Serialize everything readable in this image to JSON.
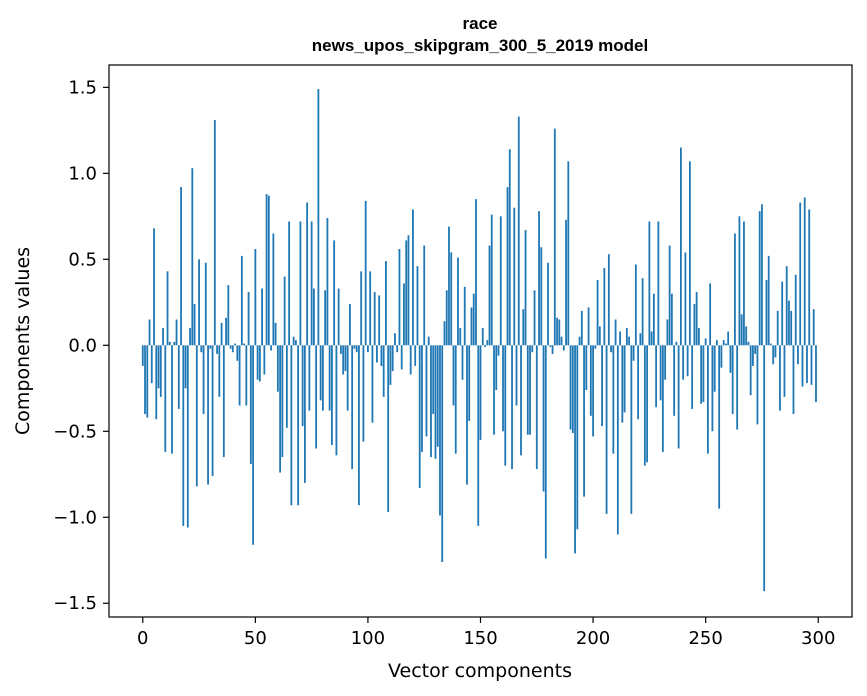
{
  "chart_data": {
    "type": "bar",
    "title": "race",
    "subtitle": "news_upos_skipgram_300_5_2019 model",
    "xlabel": "Vector components",
    "ylabel": "Components values",
    "xlim": [
      -15,
      315
    ],
    "ylim": [
      -1.58,
      1.63
    ],
    "xticks": [
      0,
      50,
      100,
      150,
      200,
      250,
      300
    ],
    "yticks": [
      -1.5,
      -1.0,
      -0.5,
      0.0,
      0.5,
      1.0,
      1.5
    ],
    "ytick_labels": [
      "−1.5",
      "−1.0",
      "−0.5",
      "0.0",
      "0.5",
      "1.0",
      "1.5"
    ],
    "grid": false,
    "bar_color": "#1f77b4",
    "values": [
      -0.12,
      -0.4,
      -0.42,
      0.15,
      -0.22,
      0.68,
      -0.43,
      -0.25,
      -0.3,
      0.1,
      -0.62,
      0.43,
      0.02,
      -0.63,
      0.02,
      0.15,
      -0.37,
      0.92,
      -1.05,
      -0.25,
      -1.06,
      0.1,
      1.03,
      0.24,
      -0.82,
      0.5,
      -0.04,
      -0.4,
      0.48,
      -0.81,
      -0.02,
      -0.76,
      1.31,
      -0.05,
      -0.3,
      0.13,
      -0.65,
      0.16,
      0.35,
      -0.02,
      -0.04,
      0.01,
      -0.09,
      -0.35,
      0.52,
      0.01,
      -0.35,
      0.31,
      -0.69,
      -1.16,
      0.56,
      -0.2,
      -0.21,
      0.33,
      -0.17,
      0.88,
      0.87,
      -0.03,
      0.65,
      0.13,
      -0.27,
      -0.74,
      -0.65,
      0.4,
      -0.48,
      0.72,
      -0.93,
      0.05,
      0.03,
      -0.93,
      0.72,
      -0.47,
      -0.8,
      0.83,
      -0.38,
      0.72,
      0.33,
      -0.6,
      1.49,
      -0.32,
      -0.38,
      0.32,
      0.74,
      -0.38,
      -0.58,
      0.61,
      -0.64,
      0.33,
      -0.05,
      -0.17,
      -0.15,
      -0.38,
      0.24,
      -0.72,
      -0.02,
      -0.04,
      -0.93,
      0.43,
      -0.56,
      0.84,
      -0.04,
      0.43,
      -0.45,
      0.31,
      -0.1,
      0.29,
      -0.12,
      -0.3,
      0.49,
      -0.97,
      -0.23,
      -0.15,
      0.07,
      -0.04,
      0.56,
      -0.14,
      0.36,
      0.61,
      0.64,
      -0.17,
      0.79,
      -0.12,
      0.46,
      -0.83,
      -0.62,
      0.58,
      -0.53,
      0.05,
      -0.65,
      -0.4,
      -0.66,
      -0.59,
      -0.99,
      -1.26,
      0.14,
      0.32,
      0.69,
      0.54,
      -0.35,
      -0.63,
      0.51,
      0.1,
      -0.2,
      0.34,
      -0.81,
      -0.44,
      0.22,
      0.3,
      0.85,
      -1.05,
      -0.55,
      0.1,
      -0.01,
      0.03,
      0.58,
      0.76,
      -0.52,
      -0.26,
      -0.06,
      0.75,
      -0.5,
      -0.7,
      0.92,
      1.14,
      -0.72,
      0.8,
      -0.35,
      1.33,
      -0.64,
      0.21,
      0.67,
      -0.52,
      -0.52,
      -0.04,
      0.32,
      -0.72,
      0.78,
      0.57,
      -0.85,
      -1.24,
      0.48,
      -0.01,
      -0.05,
      1.26,
      0.16,
      0.15,
      0.05,
      -0.03,
      0.73,
      1.07,
      -0.49,
      -0.51,
      -1.21,
      -1.07,
      0.05,
      0.2,
      -0.88,
      -0.26,
      0.22,
      -0.41,
      -0.53,
      -0.02,
      0.38,
      0.11,
      -0.47,
      0.45,
      -0.98,
      0.53,
      -0.04,
      -0.63,
      0.15,
      -1.1,
      0.08,
      -0.45,
      -0.39,
      0.1,
      0.05,
      -0.98,
      -0.09,
      0.47,
      -0.43,
      0.07,
      0.39,
      -0.7,
      -0.68,
      0.72,
      0.08,
      0.3,
      -0.36,
      0.72,
      -0.32,
      -0.62,
      -0.2,
      0.15,
      0.58,
      0.3,
      -0.41,
      0.02,
      -0.6,
      1.15,
      -0.2,
      0.54,
      -0.18,
      1.07,
      -0.37,
      0.24,
      0.31,
      0.1,
      -0.34,
      -0.33,
      0.04,
      -0.63,
      0.36,
      -0.5,
      -0.27,
      0.03,
      -0.95,
      -0.13,
      0.03,
      0.01,
      0.08,
      -0.16,
      -0.4,
      0.65,
      -0.49,
      0.75,
      0.18,
      0.72,
      0.11,
      0.02,
      -0.29,
      -0.12,
      -0.05,
      -0.46,
      0.78,
      0.82,
      -1.43,
      0.38,
      0.52,
      0.01,
      -0.11,
      -0.07,
      0.2,
      -0.38,
      0.37,
      -0.3,
      0.46,
      0.26,
      0.2,
      -0.4,
      0.41,
      -0.11,
      0.83,
      -0.24,
      0.86,
      -0.22,
      0.79,
      -0.23,
      0.21,
      -0.33
    ]
  }
}
